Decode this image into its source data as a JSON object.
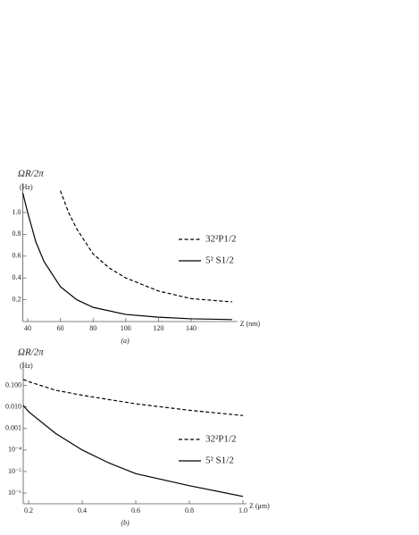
{
  "chart_data": [
    {
      "type": "line",
      "caption": "(a)",
      "ylabel": "ΩR/2π",
      "yunit": "(Hz)",
      "xlabel": "Z (nm)",
      "xlim": [
        37,
        166
      ],
      "xticks": [
        40,
        60,
        80,
        100,
        120,
        140
      ],
      "ylim": [
        0,
        1.27
      ],
      "yticks": [
        0.2,
        0.4,
        0.6,
        0.8,
        {
          "value": 1,
          "label": "1.0"
        }
      ],
      "log_y": false,
      "series": [
        {
          "name": "32²P1/2",
          "color": "#000000",
          "line_style": "dashed",
          "x": [
            60,
            65,
            70,
            80,
            90,
            100,
            120,
            140,
            165
          ],
          "values": [
            1.2,
            1.0,
            0.85,
            0.62,
            0.49,
            0.4,
            0.28,
            0.21,
            0.18
          ]
        },
        {
          "name": "5² S1/2",
          "color": "#000000",
          "line_style": "solid",
          "x": [
            37,
            40,
            45,
            50,
            60,
            70,
            80,
            100,
            120,
            140,
            165
          ],
          "values": [
            1.18,
            1.0,
            0.73,
            0.55,
            0.32,
            0.2,
            0.13,
            0.065,
            0.04,
            0.025,
            0.018
          ]
        }
      ]
    },
    {
      "type": "line",
      "caption": "(b)",
      "ylabel": "ΩR/2π",
      "yunit": "(Hz)",
      "xlabel": "Z (μm)",
      "xlim": [
        0.18,
        1.0
      ],
      "xticks": [
        0.2,
        0.4,
        0.6,
        0.8,
        {
          "value": 1,
          "label": "1.0"
        }
      ],
      "ylim": [
        3.2e-07,
        1.26
      ],
      "log_y": true,
      "yticks": [
        {
          "value": 1e-06,
          "label": "10⁻⁶"
        },
        {
          "value": 1e-05,
          "label": "10⁻⁵"
        },
        {
          "value": 0.0001,
          "label": "10⁻⁴"
        },
        0.001,
        {
          "value": 0.01,
          "label": "0.010"
        },
        {
          "value": 0.1,
          "label": "0.100"
        }
      ],
      "series": [
        {
          "name": "32²P1/2",
          "color": "#000000",
          "line_style": "dashed",
          "x": [
            0.18,
            0.2,
            0.3,
            0.4,
            0.5,
            0.6,
            0.8,
            1.0
          ],
          "values": [
            0.19,
            0.15,
            0.06,
            0.035,
            0.022,
            0.014,
            0.007,
            0.004
          ]
        },
        {
          "name": "5² S1/2",
          "color": "#000000",
          "line_style": "solid",
          "x": [
            0.18,
            0.2,
            0.3,
            0.4,
            0.5,
            0.6,
            0.8,
            1.0
          ],
          "values": [
            0.012,
            0.006,
            0.0006,
            0.0001,
            2.5e-05,
            8e-06,
            2.2e-06,
            7e-07
          ]
        }
      ]
    }
  ]
}
